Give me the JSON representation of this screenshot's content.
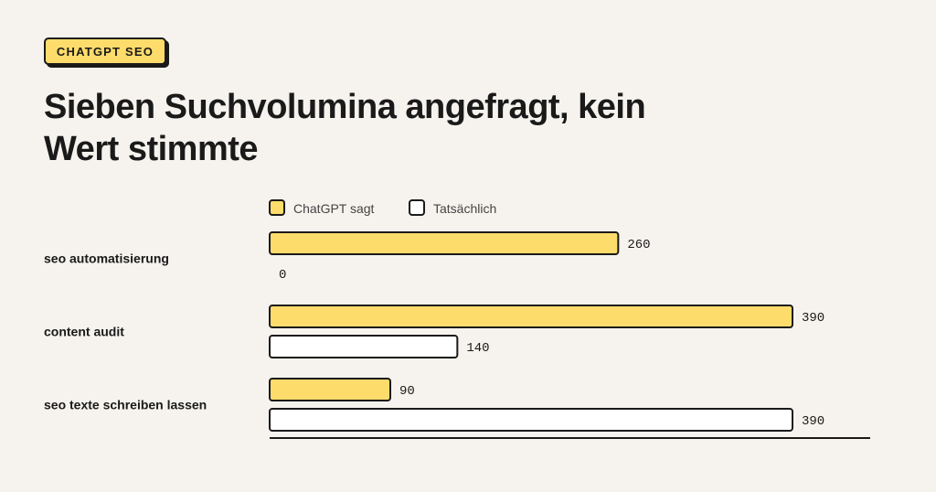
{
  "badge": "CHATGPT SEO",
  "title": "Sieben Suchvolumina angefragt, kein Wert stimmte",
  "colors": {
    "background": "#f6f3ee",
    "chatgpt": "#fddc6b",
    "actual": "#ffffff",
    "outline": "#1a1a1a"
  },
  "chart_data": {
    "type": "bar",
    "orientation": "horizontal",
    "categories": [
      "seo automatisierung",
      "content audit",
      "seo texte schreiben lassen"
    ],
    "series": [
      {
        "name": "ChatGPT sagt",
        "values": [
          260,
          390,
          90
        ],
        "color": "#fddc6b"
      },
      {
        "name": "Tatsächlich",
        "values": [
          0,
          140,
          390
        ],
        "color": "#ffffff"
      }
    ],
    "xlim": [
      0,
      390
    ],
    "grid": false,
    "legend_position": "top"
  }
}
